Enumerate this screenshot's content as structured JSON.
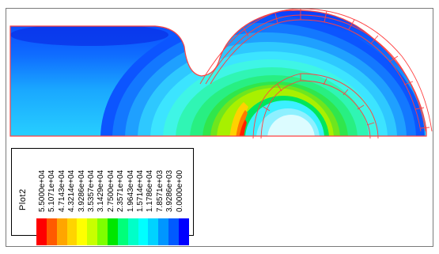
{
  "plot": {
    "legend_title": "Plot2",
    "contour_levels": [
      "5.5000e+04",
      "5.1071e+04",
      "4.7143e+04",
      "4.3214e+04",
      "3.9286e+04",
      "3.5357e+04",
      "3.1429e+04",
      "2.7500e+04",
      "2.3571e+04",
      "1.9643e+04",
      "1.5714e+04",
      "1.1786e+04",
      "7.8571e+03",
      "3.9286e+03",
      "0.0000e+00"
    ],
    "colors": [
      "#ff0000",
      "#ff5a00",
      "#ffa500",
      "#ffd400",
      "#ffff00",
      "#c8ff00",
      "#7dff00",
      "#00e600",
      "#00ff7a",
      "#00ffc8",
      "#00ffff",
      "#00d2ff",
      "#0096ff",
      "#005aff",
      "#0000ff"
    ],
    "mesh_color": "#ff4040"
  }
}
